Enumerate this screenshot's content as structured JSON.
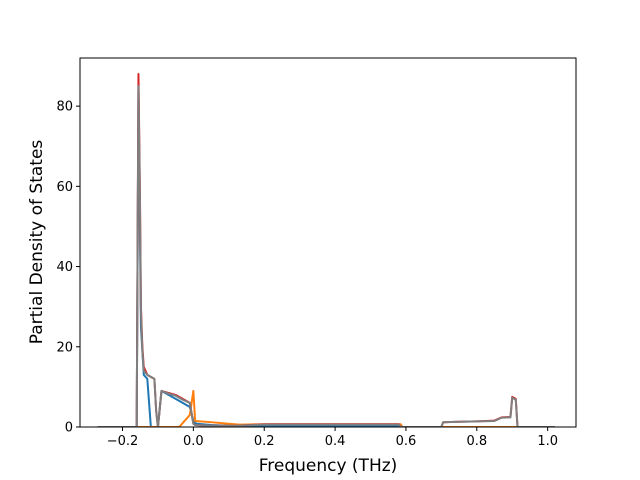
{
  "chart_data": {
    "type": "line",
    "title": "",
    "xlabel": "Frequency (THz)",
    "ylabel": "Partial Density of States",
    "xlim": [
      -0.32,
      1.08
    ],
    "ylim": [
      0,
      92
    ],
    "xticks": [
      -0.2,
      0.0,
      0.2,
      0.4,
      0.6,
      0.8,
      1.0
    ],
    "xtick_labels": [
      "−0.2",
      "0.0",
      "0.2",
      "0.4",
      "0.6",
      "0.8",
      "1.0"
    ],
    "yticks": [
      0,
      20,
      40,
      60,
      80
    ],
    "ytick_labels": [
      "0",
      "20",
      "40",
      "60",
      "80"
    ],
    "grid": false,
    "legend": "none",
    "series": [
      {
        "color": "#1f77b4",
        "x": [
          -0.27,
          -0.16,
          -0.155,
          -0.148,
          -0.14,
          -0.13,
          -0.12,
          -0.1,
          -0.09,
          -0.07,
          -0.05,
          -0.03,
          -0.01,
          0.0,
          0.005,
          0.01,
          0.05,
          0.1,
          0.12,
          0.2,
          0.3,
          0.4,
          0.5,
          0.58,
          0.585,
          0.7,
          0.8,
          0.85,
          0.9,
          0.91,
          1.02
        ],
        "y": [
          0,
          0,
          85,
          25,
          13,
          12,
          0,
          0,
          9,
          8,
          7,
          6,
          5,
          1.5,
          1,
          0.8,
          0.5,
          0.3,
          0.3,
          0.2,
          0.2,
          0.2,
          0.2,
          0.2,
          0,
          0,
          0,
          0,
          0,
          0,
          0
        ]
      },
      {
        "color": "#ff7f0e",
        "x": [
          -0.27,
          -0.04,
          -0.01,
          0.0,
          0.005,
          0.05,
          0.1,
          0.13,
          0.2,
          0.3,
          0.4,
          0.5,
          0.585,
          0.59,
          0.7,
          0.8,
          1.02
        ],
        "y": [
          0,
          0,
          3,
          9,
          1.5,
          1.2,
          0.8,
          0.6,
          0.7,
          0.7,
          0.7,
          0.7,
          0.7,
          0,
          0,
          0,
          0
        ]
      },
      {
        "color": "#d62728",
        "x": [
          -0.27,
          -0.16,
          -0.155,
          -0.151,
          -0.148,
          -0.144,
          -0.14,
          -0.13,
          -0.12,
          -0.11,
          -0.105,
          -0.1,
          -0.09,
          -0.07,
          -0.05,
          -0.03,
          -0.01,
          0.0,
          0.005,
          0.05,
          0.1,
          0.12,
          0.2,
          0.3,
          0.4,
          0.5,
          0.58,
          0.585,
          0.7,
          0.705,
          0.75,
          0.8,
          0.85,
          0.87,
          0.895,
          0.9,
          0.91,
          0.915,
          1.02
        ],
        "y": [
          0,
          0,
          88,
          60,
          30,
          20,
          15,
          13,
          12.5,
          12,
          4,
          0,
          9,
          8.5,
          8,
          7,
          6,
          0.8,
          0.5,
          0.3,
          0.3,
          0.3,
          0.7,
          0.7,
          0.7,
          0.7,
          0.7,
          0,
          0,
          1.2,
          1.3,
          1.4,
          1.6,
          2.4,
          2.5,
          7.5,
          7,
          0,
          0
        ]
      },
      {
        "color": "#7f7f7f",
        "x": [
          -0.27,
          -0.16,
          -0.155,
          -0.151,
          -0.148,
          -0.144,
          -0.14,
          -0.13,
          -0.12,
          -0.11,
          -0.105,
          -0.1,
          -0.09,
          -0.07,
          -0.05,
          -0.03,
          -0.01,
          0.0,
          0.005,
          0.05,
          0.1,
          0.12,
          0.2,
          0.3,
          0.4,
          0.5,
          0.58,
          0.585,
          0.7,
          0.705,
          0.75,
          0.8,
          0.85,
          0.87,
          0.895,
          0.9,
          0.91,
          0.915,
          1.02
        ],
        "y": [
          0,
          0,
          85,
          58,
          29,
          19,
          14,
          13,
          12.5,
          12,
          4,
          0,
          9,
          8.3,
          7.8,
          6.8,
          6,
          0.8,
          0.5,
          0.3,
          0.3,
          0.3,
          0.6,
          0.6,
          0.6,
          0.6,
          0.6,
          0,
          0,
          1.2,
          1.3,
          1.4,
          1.5,
          2.3,
          2.4,
          7.3,
          6.8,
          0,
          0
        ]
      }
    ]
  }
}
